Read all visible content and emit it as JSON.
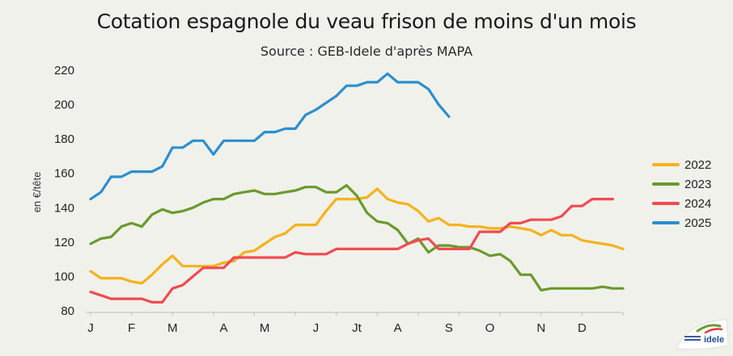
{
  "chart_data": {
    "type": "line",
    "title": "Cotation espagnole du veau frison de moins d'un mois",
    "subtitle": "Source : GEB-Idele d'après MAPA",
    "ylabel": "en €/tête",
    "ylim": [
      80,
      220
    ],
    "yticks": [
      80,
      100,
      120,
      140,
      160,
      180,
      200,
      220
    ],
    "x_tick_labels": [
      {
        "label": "J",
        "week": 1
      },
      {
        "label": "F",
        "week": 5
      },
      {
        "label": "M",
        "week": 9
      },
      {
        "label": "A",
        "week": 14
      },
      {
        "label": "M",
        "week": 18
      },
      {
        "label": "J",
        "week": 23
      },
      {
        "label": "Jt",
        "week": 27
      },
      {
        "label": "A",
        "week": 31
      },
      {
        "label": "S",
        "week": 36
      },
      {
        "label": "O",
        "week": 40
      },
      {
        "label": "N",
        "week": 45
      },
      {
        "label": "D",
        "week": 49
      }
    ],
    "x_range": [
      1,
      53
    ],
    "grid": false,
    "legend_position": "right",
    "series": [
      {
        "name": "2022",
        "color": "#f5b21a",
        "values": [
          103,
          99,
          99,
          99,
          97,
          96,
          101,
          107,
          112,
          106,
          106,
          106,
          106,
          108,
          109,
          114,
          115,
          119,
          123,
          125,
          130,
          130,
          130,
          138,
          145,
          145,
          145,
          146,
          151,
          145,
          143,
          142,
          138,
          132,
          134,
          130,
          130,
          129,
          129,
          128,
          128,
          129,
          128,
          127,
          124,
          127,
          124,
          124,
          121,
          120,
          119,
          118,
          116
        ]
      },
      {
        "name": "2023",
        "color": "#6a9a2c",
        "values": [
          119,
          122,
          123,
          129,
          131,
          129,
          136,
          139,
          137,
          138,
          140,
          143,
          145,
          145,
          148,
          149,
          150,
          148,
          148,
          149,
          150,
          152,
          152,
          149,
          149,
          153,
          147,
          137,
          132,
          131,
          127,
          119,
          122,
          114,
          118,
          118,
          117,
          117,
          115,
          112,
          113,
          109,
          101,
          101,
          92,
          93,
          93,
          93,
          93,
          93,
          94,
          93,
          93
        ]
      },
      {
        "name": "2024",
        "color": "#f04b50",
        "values": [
          91,
          89,
          87,
          87,
          87,
          87,
          85,
          85,
          93,
          95,
          100,
          105,
          105,
          105,
          111,
          111,
          111,
          111,
          111,
          111,
          114,
          113,
          113,
          113,
          116,
          116,
          116,
          116,
          116,
          116,
          116,
          119,
          121,
          122,
          116,
          116,
          116,
          116,
          126,
          126,
          126,
          131,
          131,
          133,
          133,
          133,
          135,
          141,
          141,
          145,
          145,
          145
        ]
      },
      {
        "name": "2025",
        "color": "#2a8fcf",
        "values": [
          145,
          149,
          158,
          158,
          161,
          161,
          161,
          164,
          175,
          175,
          179,
          179,
          171,
          179,
          179,
          179,
          179,
          184,
          184,
          186,
          186,
          194,
          197,
          201,
          205,
          211,
          211,
          213,
          213,
          218,
          213,
          213,
          213,
          209,
          200,
          193
        ]
      }
    ]
  },
  "logo": {
    "text": "idele"
  }
}
